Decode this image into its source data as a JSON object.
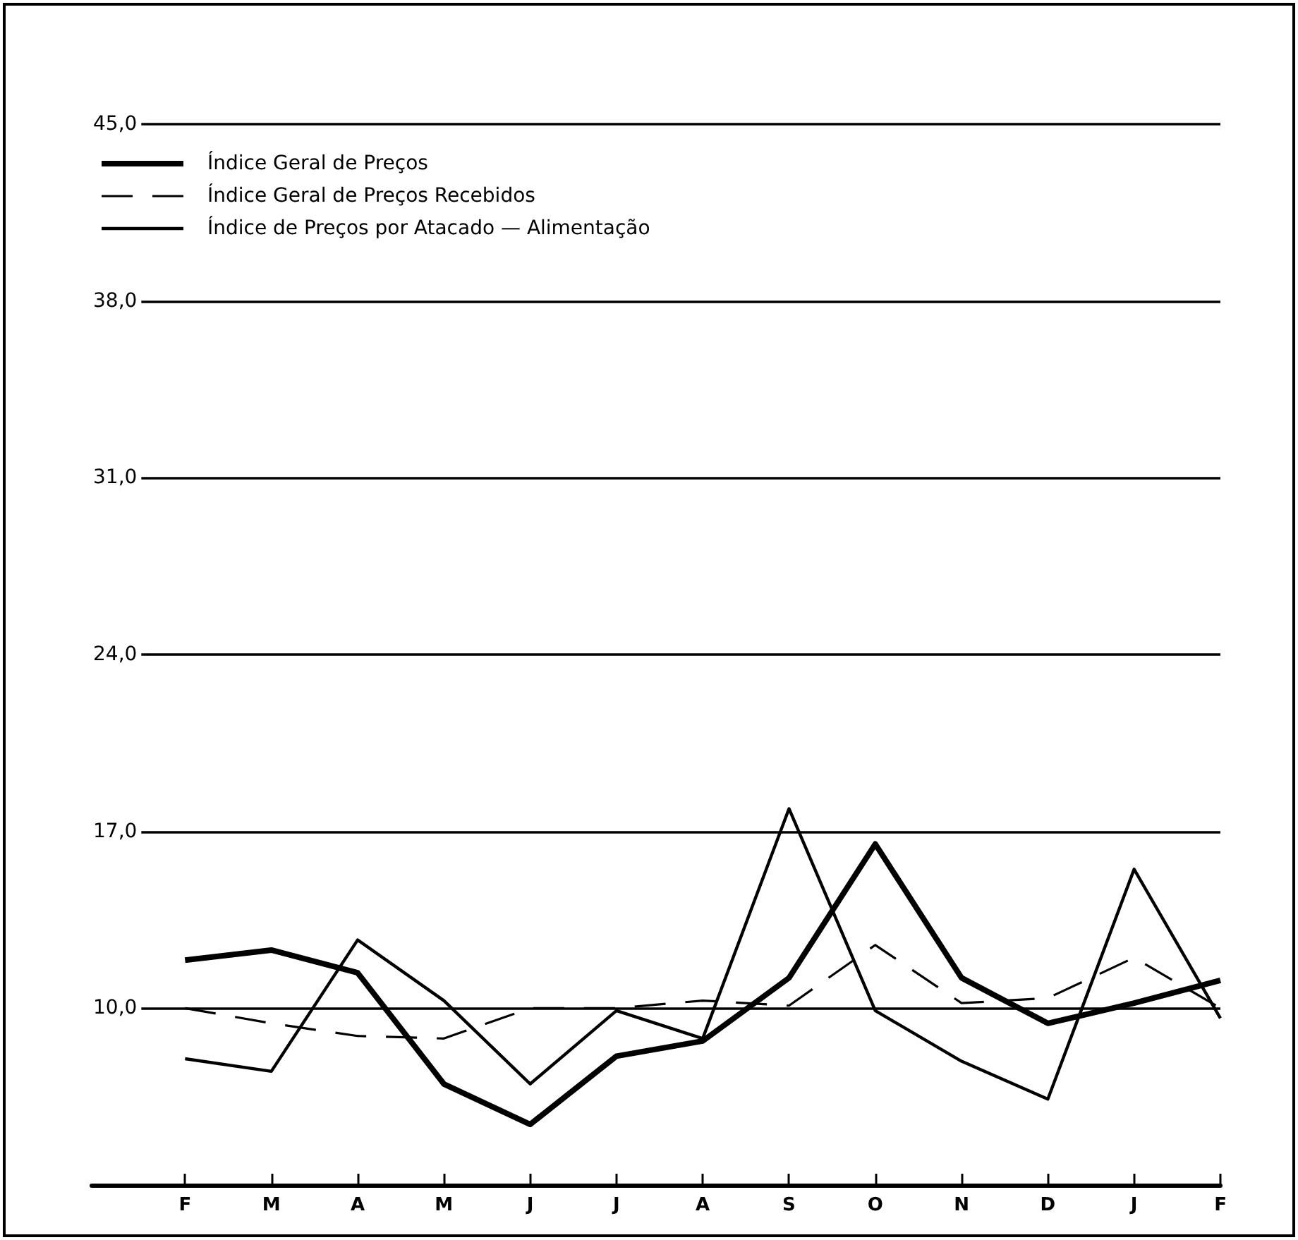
{
  "chart_data": {
    "type": "line",
    "categories": [
      "F",
      "M",
      "A",
      "M",
      "J",
      "J",
      "A",
      "S",
      "O",
      "N",
      "D",
      "J",
      "F"
    ],
    "series": [
      {
        "name": "Índice Geral de Preços",
        "color": "#000000",
        "line_style": "solid",
        "values": [
          11.9,
          12.3,
          11.4,
          7.0,
          5.4,
          8.1,
          8.7,
          11.2,
          16.5,
          11.2,
          9.4,
          10.2,
          11.1
        ]
      },
      {
        "name": "Índice Geral de Preços Recebidos",
        "color": "#000000",
        "line_style": "dashed",
        "values": [
          10.0,
          9.4,
          8.9,
          8.8,
          10.0,
          10.0,
          10.3,
          10.1,
          12.5,
          10.2,
          10.4,
          12.0,
          10.0
        ]
      },
      {
        "name": "Índice de Preços por Atacado — Alimentação",
        "color": "#000000",
        "line_style": "solid",
        "values": [
          8.0,
          7.5,
          12.7,
          10.3,
          7.0,
          9.9,
          8.8,
          17.9,
          9.9,
          7.9,
          6.4,
          15.5,
          9.6
        ]
      }
    ],
    "ylim": [
      3,
      45
    ],
    "yticks": [
      {
        "value": 10,
        "label": "10,0"
      },
      {
        "value": 17,
        "label": "17,0"
      },
      {
        "value": 24,
        "label": "24,0"
      },
      {
        "value": 31,
        "label": "31,0"
      },
      {
        "value": 38,
        "label": "38,0"
      },
      {
        "value": 45,
        "label": "45,0"
      }
    ],
    "grid": "y",
    "legend": "top left",
    "marker": "none"
  }
}
